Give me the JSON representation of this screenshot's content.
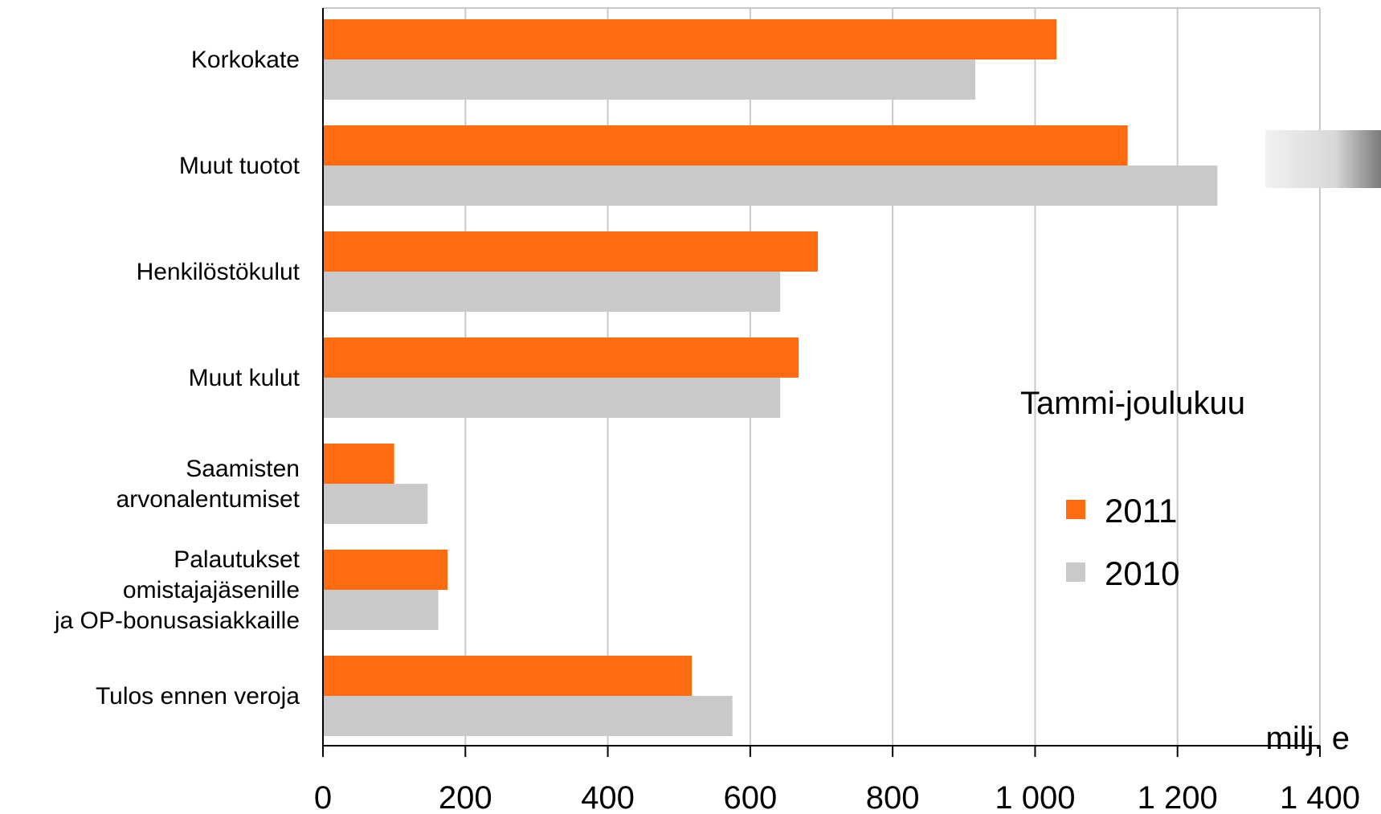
{
  "chart_data": {
    "type": "bar",
    "orientation": "horizontal",
    "categories": [
      [
        "Korkokate"
      ],
      [
        "Muut tuotot"
      ],
      [
        "Henkilöstökulut"
      ],
      [
        "Muut kulut"
      ],
      [
        "Saamisten",
        "arvonalentumiset"
      ],
      [
        "Palautukset",
        "omistajajäsenille",
        "ja OP-bonusasiakkaille"
      ],
      [
        "Tulos ennen veroja"
      ]
    ],
    "series": [
      {
        "name": "2011",
        "color": "#ff6c0f",
        "values": [
          1030,
          1130,
          695,
          668,
          100,
          175,
          518
        ]
      },
      {
        "name": "2010",
        "color": "#c9c9c9",
        "values": [
          916,
          1256,
          642,
          642,
          147,
          162,
          575
        ]
      }
    ],
    "x_ticks": [
      "0",
      "200",
      "400",
      "600",
      "800",
      "1 000",
      "1 200",
      "1 400"
    ],
    "x_tick_values": [
      0,
      200,
      400,
      600,
      800,
      1000,
      1200,
      1400
    ],
    "xlim": [
      0,
      1400
    ],
    "xlabel": "milj. e",
    "legend_title": "Tammi-joulukuu",
    "legend_position": "right",
    "grid": true,
    "gridline_color": "#c8c8c8"
  }
}
